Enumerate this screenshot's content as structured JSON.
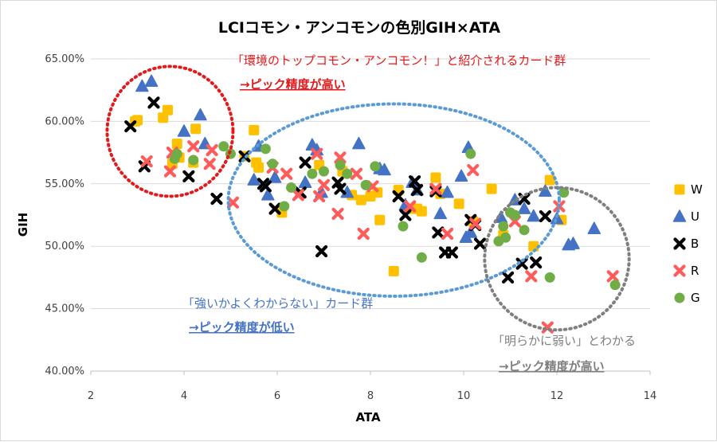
{
  "chart_data": {
    "type": "scatter",
    "title": "LCIコモン・アンコモンの色別GIH×ATA",
    "xlabel": "ATA",
    "ylabel": "GIH",
    "xlim": [
      2,
      14
    ],
    "ylim": [
      0.4,
      0.65
    ],
    "x_ticks": [
      "2",
      "4",
      "6",
      "8",
      "10",
      "12",
      "14"
    ],
    "y_ticks": [
      "40.00%",
      "45.00%",
      "50.00%",
      "55.00%",
      "60.00%",
      "65.00%"
    ],
    "grid": "horizontal",
    "legend_position": "right",
    "series": [
      {
        "name": "W",
        "color": "#FFC000",
        "marker": "square",
        "points": [
          [
            2.95,
            0.6
          ],
          [
            3.0,
            0.601
          ],
          [
            3.55,
            0.603
          ],
          [
            3.65,
            0.609
          ],
          [
            3.75,
            0.566
          ],
          [
            3.85,
            0.582
          ],
          [
            3.9,
            0.571
          ],
          [
            4.2,
            0.567
          ],
          [
            4.25,
            0.594
          ],
          [
            5.3,
            0.572
          ],
          [
            5.5,
            0.593
          ],
          [
            5.55,
            0.567
          ],
          [
            5.6,
            0.563
          ],
          [
            6.1,
            0.527
          ],
          [
            6.9,
            0.565
          ],
          [
            7.4,
            0.56
          ],
          [
            7.6,
            0.541
          ],
          [
            7.8,
            0.537
          ],
          [
            8.0,
            0.54
          ],
          [
            8.15,
            0.543
          ],
          [
            8.2,
            0.521
          ],
          [
            8.5,
            0.48
          ],
          [
            8.6,
            0.545
          ],
          [
            8.9,
            0.53
          ],
          [
            9.0,
            0.53
          ],
          [
            9.1,
            0.528
          ],
          [
            9.4,
            0.555
          ],
          [
            9.5,
            0.542
          ],
          [
            9.9,
            0.534
          ],
          [
            10.2,
            0.52
          ],
          [
            10.6,
            0.546
          ],
          [
            10.85,
            0.509
          ],
          [
            11.5,
            0.5
          ],
          [
            11.85,
            0.553
          ],
          [
            12.1,
            0.521
          ]
        ]
      },
      {
        "name": "U",
        "color": "#4472C4",
        "marker": "triangle",
        "points": [
          [
            3.1,
            0.628
          ],
          [
            3.3,
            0.632
          ],
          [
            4.0,
            0.592
          ],
          [
            4.35,
            0.605
          ],
          [
            4.45,
            0.582
          ],
          [
            5.5,
            0.553
          ],
          [
            5.6,
            0.58
          ],
          [
            5.8,
            0.541
          ],
          [
            5.95,
            0.555
          ],
          [
            6.6,
            0.551
          ],
          [
            6.75,
            0.581
          ],
          [
            6.85,
            0.577
          ],
          [
            6.95,
            0.543
          ],
          [
            7.5,
            0.543
          ],
          [
            7.75,
            0.582
          ],
          [
            8.2,
            0.562
          ],
          [
            8.3,
            0.561
          ],
          [
            8.75,
            0.533
          ],
          [
            8.9,
            0.551
          ],
          [
            9.0,
            0.545
          ],
          [
            9.5,
            0.526
          ],
          [
            9.65,
            0.543
          ],
          [
            9.95,
            0.556
          ],
          [
            10.05,
            0.507
          ],
          [
            10.1,
            0.579
          ],
          [
            10.15,
            0.511
          ],
          [
            10.8,
            0.523
          ],
          [
            11.1,
            0.537
          ],
          [
            11.3,
            0.53
          ],
          [
            11.5,
            0.524
          ],
          [
            11.75,
            0.544
          ],
          [
            12.0,
            0.522
          ],
          [
            12.25,
            0.501
          ],
          [
            12.35,
            0.502
          ],
          [
            12.8,
            0.514
          ]
        ]
      },
      {
        "name": "B",
        "color": "#000000",
        "marker": "x",
        "points": [
          [
            2.85,
            0.596
          ],
          [
            3.15,
            0.564
          ],
          [
            3.35,
            0.615
          ],
          [
            4.1,
            0.556
          ],
          [
            4.7,
            0.538
          ],
          [
            5.3,
            0.572
          ],
          [
            5.7,
            0.55
          ],
          [
            5.75,
            0.548
          ],
          [
            5.95,
            0.53
          ],
          [
            6.5,
            0.543
          ],
          [
            6.6,
            0.567
          ],
          [
            6.95,
            0.496
          ],
          [
            7.3,
            0.551
          ],
          [
            7.35,
            0.546
          ],
          [
            8.6,
            0.54
          ],
          [
            8.75,
            0.525
          ],
          [
            8.95,
            0.552
          ],
          [
            9.0,
            0.545
          ],
          [
            9.4,
            0.544
          ],
          [
            9.45,
            0.511
          ],
          [
            9.6,
            0.495
          ],
          [
            9.75,
            0.495
          ],
          [
            10.15,
            0.521
          ],
          [
            10.25,
            0.517
          ],
          [
            10.35,
            0.502
          ],
          [
            10.95,
            0.475
          ],
          [
            11.25,
            0.486
          ],
          [
            11.3,
            0.538
          ],
          [
            11.55,
            0.487
          ],
          [
            11.75,
            0.524
          ]
        ]
      },
      {
        "name": "R",
        "color": "#FF5B5B",
        "marker": "x",
        "points": [
          [
            3.2,
            0.568
          ],
          [
            3.7,
            0.56
          ],
          [
            3.75,
            0.575
          ],
          [
            4.2,
            0.58
          ],
          [
            4.55,
            0.566
          ],
          [
            4.6,
            0.577
          ],
          [
            5.05,
            0.535
          ],
          [
            5.9,
            0.563
          ],
          [
            6.2,
            0.558
          ],
          [
            6.45,
            0.541
          ],
          [
            6.85,
            0.574
          ],
          [
            6.9,
            0.54
          ],
          [
            7.0,
            0.549
          ],
          [
            7.3,
            0.526
          ],
          [
            7.35,
            0.571
          ],
          [
            7.7,
            0.558
          ],
          [
            7.85,
            0.51
          ],
          [
            8.05,
            0.548
          ],
          [
            8.85,
            0.532
          ],
          [
            9.4,
            0.546
          ],
          [
            9.65,
            0.51
          ],
          [
            10.2,
            0.561
          ],
          [
            10.25,
            0.518
          ],
          [
            11.1,
            0.52
          ],
          [
            11.45,
            0.476
          ],
          [
            11.8,
            0.435
          ],
          [
            12.05,
            0.532
          ],
          [
            13.2,
            0.476
          ]
        ]
      },
      {
        "name": "G",
        "color": "#70AD47",
        "marker": "circle",
        "points": [
          [
            3.8,
            0.57
          ],
          [
            3.85,
            0.574
          ],
          [
            4.2,
            0.569
          ],
          [
            4.85,
            0.58
          ],
          [
            5.0,
            0.574
          ],
          [
            5.75,
            0.578
          ],
          [
            5.9,
            0.566
          ],
          [
            6.15,
            0.532
          ],
          [
            6.3,
            0.547
          ],
          [
            6.75,
            0.558
          ],
          [
            7.0,
            0.56
          ],
          [
            7.35,
            0.565
          ],
          [
            7.5,
            0.558
          ],
          [
            7.9,
            0.549
          ],
          [
            8.1,
            0.564
          ],
          [
            8.7,
            0.516
          ],
          [
            9.1,
            0.491
          ],
          [
            10.15,
            0.574
          ],
          [
            10.75,
            0.504
          ],
          [
            10.85,
            0.516
          ],
          [
            11.0,
            0.527
          ],
          [
            11.3,
            0.513
          ],
          [
            11.85,
            0.475
          ],
          [
            12.15,
            0.543
          ],
          [
            13.25,
            0.469
          ],
          [
            10.9,
            0.507
          ],
          [
            11.1,
            0.525
          ]
        ]
      }
    ],
    "annotations": {
      "red_line1": "「環境のトップコモン・アンコモン！」と紹介されるカード群",
      "red_line2": "→ピック精度が高い",
      "blue_line1": "「強いかよくわからない」カード群",
      "blue_line2": "→ピック精度が低い",
      "gray_line1": "「明らかに弱い」とわかる",
      "gray_line2": "→ピック精度が高い"
    },
    "annotation_colors": {
      "red": "#E31A1C",
      "blue": "#4472C4",
      "gray": "#7F7F7F"
    },
    "regions": [
      {
        "shape": "ellipse",
        "color": "#E31A1C",
        "style": "dotted",
        "cx": 3.7,
        "cy": 0.592,
        "rx": 1.35,
        "ry": 0.052
      },
      {
        "shape": "ellipse",
        "color": "#5B9BD5",
        "style": "dotted",
        "cx": 8.5,
        "cy": 0.537,
        "rx": 3.55,
        "ry": 0.077
      },
      {
        "shape": "ellipse",
        "color": "#7F7F7F",
        "style": "dotted",
        "cx": 12.0,
        "cy": 0.49,
        "rx": 1.55,
        "ry": 0.057
      }
    ]
  }
}
